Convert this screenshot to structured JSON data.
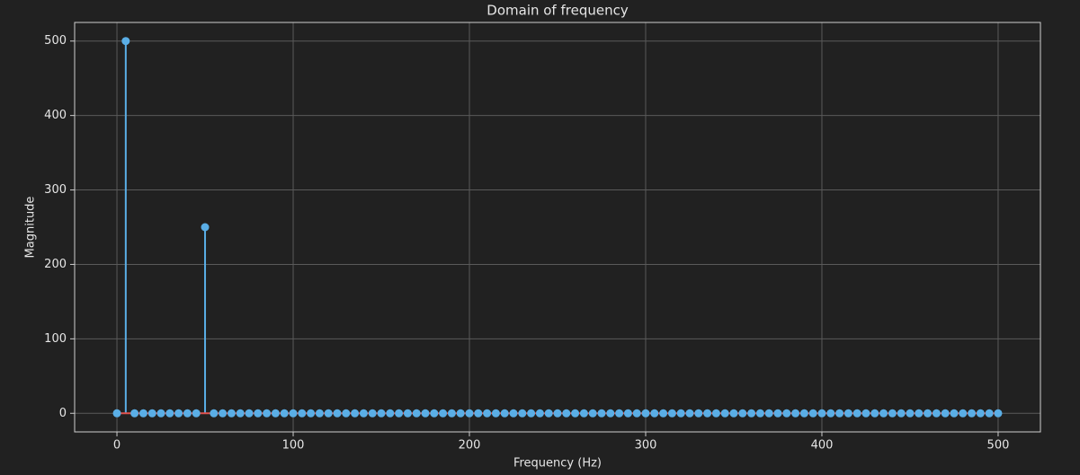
{
  "chart_data": {
    "type": "stem",
    "title": "Domain of frequency",
    "x_label": "Frequency (Hz)",
    "y_label": "Magnitude",
    "x": [
      0,
      5,
      10,
      15,
      20,
      25,
      30,
      35,
      40,
      45,
      50,
      55,
      60,
      65,
      70,
      75,
      80,
      85,
      90,
      95,
      100,
      105,
      110,
      115,
      120,
      125,
      130,
      135,
      140,
      145,
      150,
      155,
      160,
      165,
      170,
      175,
      180,
      185,
      190,
      195,
      200,
      205,
      210,
      215,
      220,
      225,
      230,
      235,
      240,
      245,
      250,
      255,
      260,
      265,
      270,
      275,
      280,
      285,
      290,
      295,
      300,
      305,
      310,
      315,
      320,
      325,
      330,
      335,
      340,
      345,
      350,
      355,
      360,
      365,
      370,
      375,
      380,
      385,
      390,
      395,
      400,
      405,
      410,
      415,
      420,
      425,
      430,
      435,
      440,
      445,
      450,
      455,
      460,
      465,
      470,
      475,
      480,
      485,
      490,
      495,
      500
    ],
    "values": [
      0,
      500,
      0,
      0,
      0,
      0,
      0,
      0,
      0,
      0,
      250,
      0,
      0,
      0,
      0,
      0,
      0,
      0,
      0,
      0,
      0,
      0,
      0,
      0,
      0,
      0,
      0,
      0,
      0,
      0,
      0,
      0,
      0,
      0,
      0,
      0,
      0,
      0,
      0,
      0,
      0,
      0,
      0,
      0,
      0,
      0,
      0,
      0,
      0,
      0,
      0,
      0,
      0,
      0,
      0,
      0,
      0,
      0,
      0,
      0,
      0,
      0,
      0,
      0,
      0,
      0,
      0,
      0,
      0,
      0,
      0,
      0,
      0,
      0,
      0,
      0,
      0,
      0,
      0,
      0,
      0,
      0,
      0,
      0,
      0,
      0,
      0,
      0,
      0,
      0,
      0,
      0,
      0,
      0,
      0,
      0,
      0,
      0,
      0,
      0,
      0
    ],
    "color": "#5aaee6",
    "baseline_color": "#e0524f",
    "xlim": [
      -24,
      524
    ],
    "ylim": [
      -25,
      525
    ],
    "xticks": [
      0,
      100,
      200,
      300,
      400,
      500
    ],
    "yticks": [
      0,
      100,
      200,
      300,
      400,
      500
    ],
    "grid": true
  }
}
